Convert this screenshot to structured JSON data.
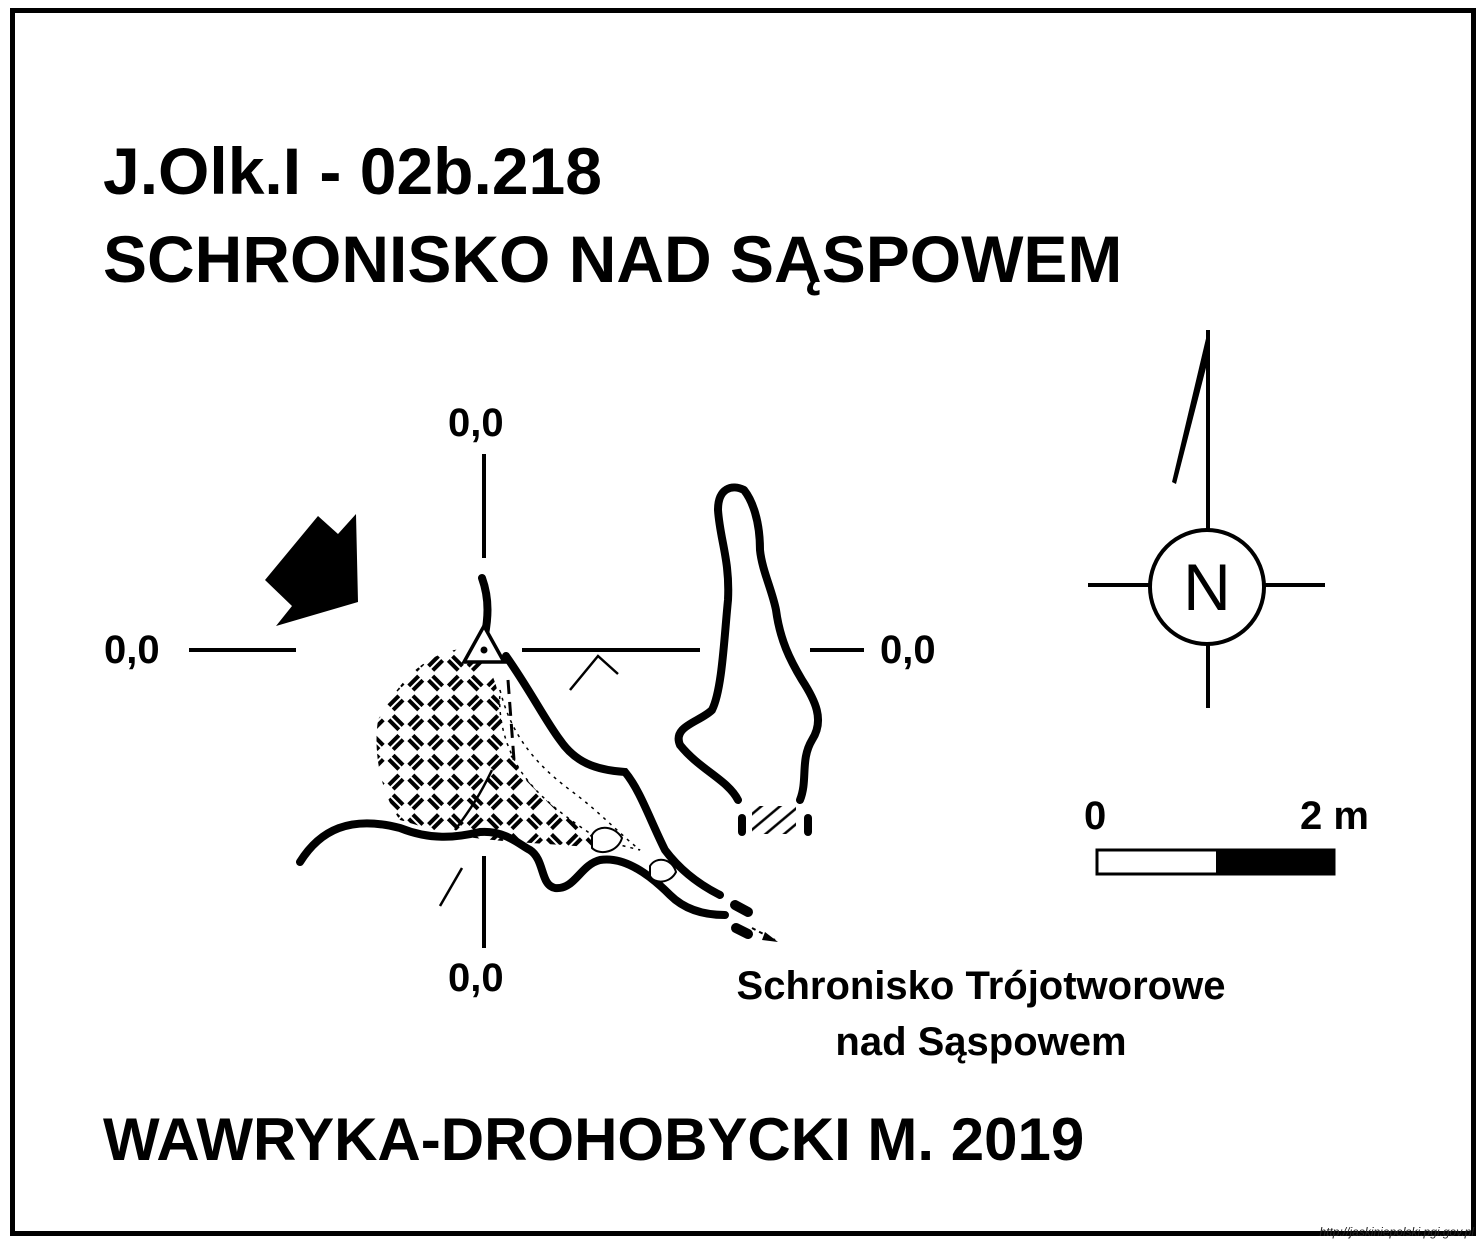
{
  "header": {
    "code": "J.Olk.I - 02b.218",
    "name": "SCHRONISKO NAD SĄSPOWEM"
  },
  "coords": {
    "top": "0,0",
    "left": "0,0",
    "right": "0,0",
    "bottom": "0,0"
  },
  "compass": {
    "north_letter": "N",
    "icon": "north-arrow-icon"
  },
  "scale_bar": {
    "min_label": "0",
    "max_label": "2 m"
  },
  "neighbor_cave": {
    "line1": "Schronisko Trójotworowe",
    "line2": "nad Sąspowem"
  },
  "author": "WAWRYKA-DROHOBYCKI M. 2019",
  "credit": "http://jaskiniepolski.pgi.gov.pl",
  "colors": {
    "ink": "#000000",
    "paper": "#ffffff"
  }
}
